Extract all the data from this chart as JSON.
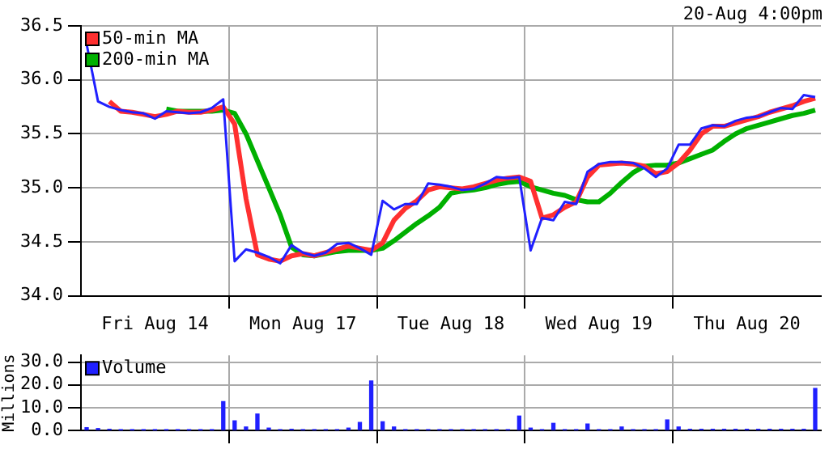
{
  "chart_data": [
    {
      "type": "line",
      "annotations": [
        "20-Aug 4:00pm"
      ],
      "categories": [
        null,
        null,
        null,
        null,
        null,
        null,
        "Fri Aug 14",
        null,
        null,
        null,
        null,
        null,
        null,
        null,
        null,
        null,
        null,
        null,
        null,
        "Mon Aug 17",
        null,
        null,
        null,
        null,
        null,
        null,
        null,
        null,
        null,
        null,
        null,
        null,
        "Tue Aug 18",
        null,
        null,
        null,
        null,
        null,
        null,
        null,
        null,
        null,
        null,
        null,
        null,
        "Wed Aug 19",
        null,
        null,
        null,
        null,
        null,
        null,
        null,
        null,
        null,
        null,
        null,
        null,
        "Thu Aug 20",
        null,
        null,
        null,
        null,
        null,
        null
      ],
      "ylim": [
        34.0,
        36.5
      ],
      "yticks": [
        {
          "value": 34,
          "label": "34.0"
        },
        {
          "value": 34.5,
          "label": "34.5"
        },
        {
          "value": 35,
          "label": "35.0"
        },
        {
          "value": 35.5,
          "label": "35.5"
        },
        {
          "value": 36,
          "label": "36.0"
        },
        {
          "value": 36.5,
          "label": "36.5"
        }
      ],
      "grid": true,
      "legend": "top left",
      "series": [
        {
          "color": "#2020ff",
          "values": [
            36.33,
            35.8,
            35.75,
            35.72,
            35.7,
            35.69,
            35.64,
            35.71,
            35.7,
            35.69,
            35.7,
            35.74,
            35.82,
            34.32,
            34.43,
            34.4,
            34.36,
            34.3,
            34.47,
            34.4,
            34.37,
            34.4,
            34.48,
            34.49,
            34.44,
            34.38,
            34.88,
            34.8,
            34.85,
            34.85,
            35.04,
            35.03,
            35.01,
            34.98,
            34.99,
            35.04,
            35.1,
            35.09,
            35.1,
            34.42,
            34.72,
            34.7,
            34.87,
            34.85,
            35.15,
            35.22,
            35.24,
            35.24,
            35.23,
            35.18,
            35.1,
            35.18,
            35.4,
            35.4,
            35.55,
            35.58,
            35.57,
            35.62,
            35.65,
            35.66,
            35.7,
            35.74,
            35.73,
            35.86,
            35.84
          ]
        },
        {
          "name": "50-min MA",
          "color": "#ff3030",
          "values": [
            null,
            null,
            35.8,
            35.71,
            35.7,
            35.68,
            35.66,
            35.68,
            35.71,
            35.7,
            35.7,
            35.72,
            35.75,
            35.59,
            34.9,
            34.38,
            34.34,
            34.32,
            34.37,
            34.39,
            34.37,
            34.4,
            34.43,
            34.46,
            34.44,
            34.42,
            34.49,
            34.7,
            34.81,
            34.88,
            34.98,
            35.01,
            35.0,
            34.99,
            35.01,
            35.04,
            35.07,
            35.09,
            35.1,
            35.06,
            34.72,
            34.75,
            34.82,
            34.87,
            35.1,
            35.21,
            35.22,
            35.23,
            35.22,
            35.2,
            35.13,
            35.15,
            35.23,
            35.35,
            35.5,
            35.57,
            35.57,
            35.6,
            35.63,
            35.66,
            35.7,
            35.73,
            35.76,
            35.8,
            35.83
          ]
        },
        {
          "name": "200-min MA",
          "color": "#00b000",
          "values": [
            null,
            null,
            null,
            null,
            null,
            null,
            null,
            35.73,
            35.71,
            35.71,
            35.71,
            35.71,
            35.72,
            35.69,
            35.5,
            35.25,
            35.0,
            34.75,
            34.45,
            34.38,
            34.37,
            34.39,
            34.41,
            34.42,
            34.42,
            34.42,
            34.44,
            34.51,
            34.59,
            34.67,
            34.74,
            34.82,
            34.95,
            34.97,
            34.98,
            35.0,
            35.03,
            35.05,
            35.06,
            35.01,
            34.98,
            34.95,
            34.93,
            34.89,
            34.87,
            34.87,
            34.95,
            35.05,
            35.14,
            35.2,
            35.21,
            35.21,
            35.23,
            35.27,
            35.31,
            35.35,
            35.43,
            35.5,
            35.55,
            35.58,
            35.61,
            35.64,
            35.67,
            35.69,
            35.72
          ]
        }
      ]
    },
    {
      "type": "bar",
      "ylabel": "Millions",
      "categories": [
        null,
        null,
        null,
        null,
        null,
        null,
        null,
        null,
        null,
        null,
        null,
        null,
        null,
        null,
        null,
        null,
        null,
        null,
        null,
        null,
        null,
        null,
        null,
        null,
        null,
        null,
        null,
        null,
        null,
        null,
        null,
        null,
        null,
        null,
        null,
        null,
        null,
        null,
        null,
        null,
        null,
        null,
        null,
        null,
        null,
        null,
        null,
        null,
        null,
        null,
        null,
        null,
        null,
        null,
        null,
        null,
        null,
        null,
        null,
        null,
        null,
        null,
        null,
        null,
        null
      ],
      "ylim": [
        0,
        33
      ],
      "yticks": [
        {
          "value": 0,
          "label": "0.0"
        },
        {
          "value": 10,
          "label": "10.0"
        },
        {
          "value": 20,
          "label": "20.0"
        },
        {
          "value": 30,
          "label": "30.0"
        }
      ],
      "grid": true,
      "legend": "top left",
      "tick_labels": "y",
      "series": [
        {
          "name": "Volume",
          "color": "#2020ff",
          "values": [
            1.2,
            0.8,
            0.5,
            0.2,
            0.2,
            0.2,
            0.2,
            0.2,
            0.2,
            0.2,
            0.2,
            0.2,
            12.7,
            4.2,
            1.5,
            7.2,
            1.0,
            0.3,
            0.5,
            0.3,
            0.3,
            0.3,
            0.3,
            1.0,
            3.5,
            21.7,
            3.8,
            1.5,
            0.3,
            0.3,
            0.3,
            0.3,
            0.3,
            0.3,
            0.3,
            0.3,
            0.3,
            0.3,
            6.3,
            1.0,
            0.3,
            3.1,
            0.3,
            0.3,
            2.8,
            0.3,
            0.3,
            1.5,
            0.3,
            0.3,
            0.3,
            4.6,
            1.5,
            0.5,
            0.5,
            0.5,
            0.5,
            0.5,
            0.5,
            0.5,
            0.5,
            0.5,
            0.5,
            0.5,
            18.4
          ]
        }
      ]
    }
  ]
}
